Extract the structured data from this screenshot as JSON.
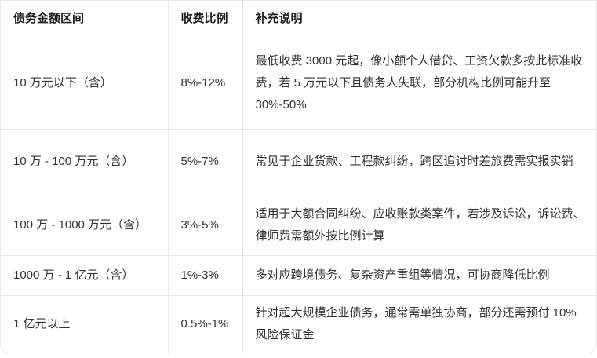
{
  "table": {
    "headers": [
      "债务金额区间",
      "收费比例",
      "补充说明"
    ],
    "rows": [
      {
        "range": "10 万元以下（含）",
        "rate": "8%-12%",
        "note": "最低收费 3000 元起，像小额个人借贷、工资欠款多按此标准收费，若 5 万元以下且债务人失联，部分机构比例可能升至 30%-50%"
      },
      {
        "range": "10 万 - 100 万元（含）",
        "rate": "5%-7%",
        "note": "常见于企业货款、工程款纠纷，跨区追讨时差旅费需实报实销"
      },
      {
        "range": "100 万 - 1000 万元（含）",
        "rate": "3%-5%",
        "note": "适用于大额合同纠纷、应收账款类案件，若涉及诉讼，诉讼费、律师费需额外按比例计算"
      },
      {
        "range": "1000 万 - 1 亿元（含）",
        "rate": "1%-3%",
        "note": "多对应跨境债务、复杂资产重组等情况，可协商降低比例"
      },
      {
        "range": "1 亿元以上",
        "rate": "0.5%-1%",
        "note": "针对超大规模企业债务，通常需单独协商，部分还需预付 10% 风险保证金"
      }
    ]
  },
  "colors": {
    "border": "#e8e8e8",
    "header_text": "#1a1a1a",
    "body_text": "#333333",
    "background": "#ffffff"
  }
}
